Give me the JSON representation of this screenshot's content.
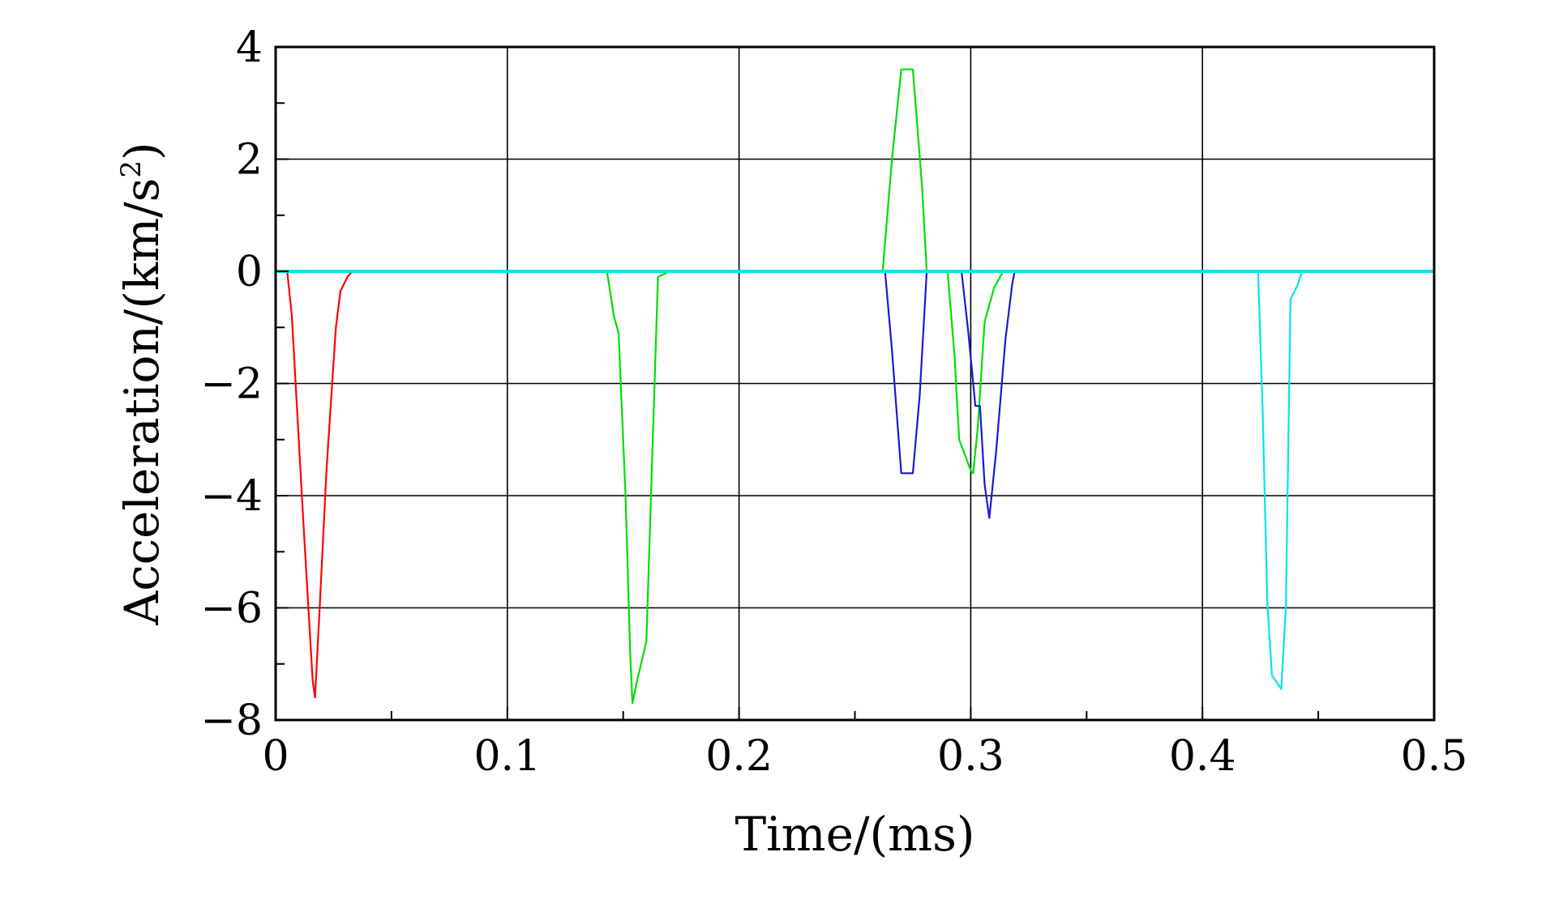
{
  "chart_data": {
    "type": "line",
    "xlabel": "Time/(ms)",
    "ylabel": {
      "prefix": "Acceleration/(km/s",
      "superscript": "2",
      "suffix": ")"
    },
    "xlim": [
      0,
      0.5
    ],
    "ylim": [
      -8,
      4
    ],
    "x_ticks": [
      0,
      0.1,
      0.2,
      0.3,
      0.4,
      0.5
    ],
    "x_tick_labels": [
      "0",
      "0.1",
      "0.2",
      "0.3",
      "0.4",
      "0.5"
    ],
    "x_minor_ticks": [
      0.05,
      0.15,
      0.25,
      0.35,
      0.45
    ],
    "y_ticks": [
      4,
      2,
      0,
      -2,
      -4,
      -6,
      -8
    ],
    "y_tick_labels": [
      "4",
      "2",
      "0",
      "−2",
      "−4",
      "−6",
      "−8"
    ],
    "y_minor_ticks": [
      3,
      1,
      -1,
      -3,
      -5,
      -7
    ],
    "grid": true,
    "series": [
      {
        "color": "#ff0000",
        "points": [
          [
            0,
            0
          ],
          [
            0.005,
            0
          ],
          [
            0.007,
            -0.8
          ],
          [
            0.012,
            -4.5
          ],
          [
            0.016,
            -7.3
          ],
          [
            0.017,
            -7.6
          ],
          [
            0.019,
            -6.0
          ],
          [
            0.022,
            -3.5
          ],
          [
            0.026,
            -1.0
          ],
          [
            0.028,
            -0.35
          ],
          [
            0.031,
            -0.1
          ],
          [
            0.033,
            0
          ],
          [
            0.5,
            0
          ]
        ]
      },
      {
        "color": "#00dd00",
        "points": [
          [
            0,
            0
          ],
          [
            0.143,
            0
          ],
          [
            0.146,
            -0.8
          ],
          [
            0.148,
            -1.1
          ],
          [
            0.151,
            -4.0
          ],
          [
            0.153,
            -6.8
          ],
          [
            0.154,
            -7.7
          ],
          [
            0.156,
            -7.3
          ],
          [
            0.16,
            -6.6
          ],
          [
            0.162,
            -4.0
          ],
          [
            0.165,
            -0.1
          ],
          [
            0.17,
            0
          ],
          [
            0.262,
            0
          ],
          [
            0.266,
            2.0
          ],
          [
            0.27,
            3.6
          ],
          [
            0.275,
            3.6
          ],
          [
            0.279,
            1.5
          ],
          [
            0.281,
            0
          ],
          [
            0.29,
            0
          ],
          [
            0.293,
            -1.5
          ],
          [
            0.295,
            -3.0
          ],
          [
            0.3,
            -3.55
          ],
          [
            0.301,
            -3.6
          ],
          [
            0.303,
            -2.8
          ],
          [
            0.306,
            -0.9
          ],
          [
            0.31,
            -0.3
          ],
          [
            0.314,
            0
          ],
          [
            0.5,
            0
          ]
        ]
      },
      {
        "color": "#1a1ad0",
        "points": [
          [
            0,
            0
          ],
          [
            0.263,
            0
          ],
          [
            0.266,
            -1.4
          ],
          [
            0.27,
            -3.6
          ],
          [
            0.275,
            -3.6
          ],
          [
            0.278,
            -2.2
          ],
          [
            0.281,
            0
          ],
          [
            0.296,
            0
          ],
          [
            0.299,
            -1.1
          ],
          [
            0.302,
            -2.4
          ],
          [
            0.304,
            -2.4
          ],
          [
            0.306,
            -3.8
          ],
          [
            0.308,
            -4.4
          ],
          [
            0.311,
            -3.2
          ],
          [
            0.315,
            -1.2
          ],
          [
            0.318,
            -0.2
          ],
          [
            0.319,
            0
          ],
          [
            0.426,
            0
          ],
          [
            0.443,
            0
          ],
          [
            0.5,
            0
          ]
        ]
      },
      {
        "color": "#00e5e5",
        "points": [
          [
            0,
            0
          ],
          [
            0.424,
            0
          ],
          [
            0.426,
            -2.5
          ],
          [
            0.428,
            -5.9
          ],
          [
            0.43,
            -7.2
          ],
          [
            0.434,
            -7.45
          ],
          [
            0.436,
            -6.0
          ],
          [
            0.438,
            -0.5
          ],
          [
            0.441,
            -0.25
          ],
          [
            0.443,
            0
          ],
          [
            0.5,
            0
          ]
        ]
      }
    ]
  }
}
